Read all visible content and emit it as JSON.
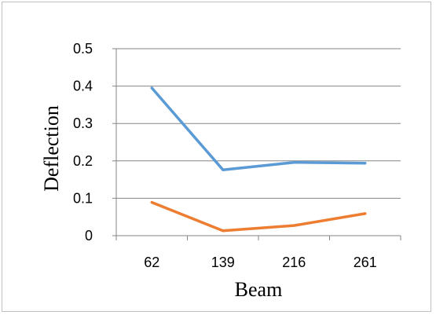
{
  "chart_data": {
    "type": "line",
    "title": "",
    "xlabel": "Beam",
    "ylabel": "Deflection",
    "categories": [
      "62",
      "139",
      "216",
      "261"
    ],
    "ylim": [
      0,
      0.5
    ],
    "yticks": [
      0,
      0.1,
      0.2,
      0.3,
      0.4,
      0.5
    ],
    "ytick_labels": [
      "0",
      "0.1",
      "0.2",
      "0.3",
      "0.4",
      "0.5"
    ],
    "grid": "horizontal",
    "legend": "none",
    "series": [
      {
        "values": [
          0.395,
          0.176,
          0.196,
          0.194
        ],
        "color": "#5b9bd5"
      },
      {
        "values": [
          0.089,
          0.013,
          0.027,
          0.059
        ],
        "color": "#ed7d31"
      }
    ]
  }
}
